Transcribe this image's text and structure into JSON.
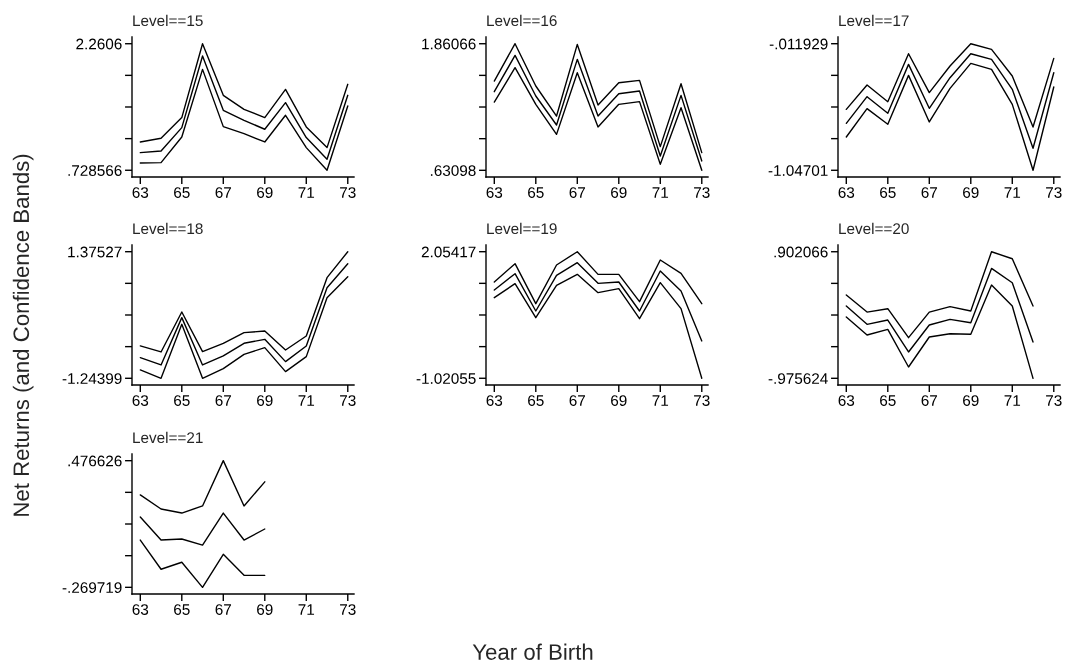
{
  "chart_data": [
    {
      "type": "line",
      "title": "Level==15",
      "xlabel": "Year of Birth",
      "ylabel": "Net Returns (and Confidence Bands)",
      "x": [
        63,
        64,
        65,
        66,
        67,
        68,
        69,
        70,
        71,
        72,
        73
      ],
      "xlim": [
        62.6,
        73.3
      ],
      "xticks": [
        63,
        65,
        67,
        69,
        71,
        73
      ],
      "ylim": [
        0.647,
        2.342
      ],
      "yticks": [
        {
          "value": 0.728566,
          "label": ".728566"
        },
        {
          "value": 1.1116,
          "label": null
        },
        {
          "value": 1.4946,
          "label": null
        },
        {
          "value": 1.8776,
          "label": null
        },
        {
          "value": 2.2606,
          "label": "2.2606"
        }
      ],
      "series": [
        {
          "color": "#000000",
          "values": [
            1.071,
            1.116,
            1.366,
            2.261,
            1.636,
            1.466,
            1.366,
            1.708,
            1.253,
            1.003,
            1.769
          ]
        },
        {
          "color": "#000000",
          "values": [
            0.942,
            0.962,
            1.245,
            2.112,
            1.454,
            1.333,
            1.225,
            1.547,
            1.124,
            0.862,
            1.636
          ]
        },
        {
          "color": "#000000",
          "values": [
            0.817,
            0.821,
            1.132,
            1.95,
            1.257,
            1.172,
            1.071,
            1.394,
            1.003,
            0.729,
            1.507
          ]
        }
      ]
    },
    {
      "type": "line",
      "title": "Level==16",
      "x": [
        63,
        64,
        65,
        66,
        67,
        68,
        69,
        70,
        71,
        72,
        73
      ],
      "xlim": [
        62.6,
        73.3
      ],
      "xticks": [
        63,
        65,
        67,
        69,
        71,
        73
      ],
      "ylim": [
        0.566,
        1.926
      ],
      "yticks": [
        {
          "value": 0.63098,
          "label": ".63098"
        },
        {
          "value": 0.9384,
          "label": null
        },
        {
          "value": 1.24582,
          "label": null
        },
        {
          "value": 1.55324,
          "label": null
        },
        {
          "value": 1.86066,
          "label": "1.86066"
        }
      ],
      "series": [
        {
          "color": "#000000",
          "values": [
            1.498,
            1.861,
            1.45,
            1.158,
            1.854,
            1.265,
            1.482,
            1.505,
            0.861,
            1.472,
            0.803
          ]
        },
        {
          "color": "#000000",
          "values": [
            1.395,
            1.747,
            1.353,
            1.071,
            1.709,
            1.158,
            1.375,
            1.401,
            0.77,
            1.359,
            0.722
          ]
        },
        {
          "color": "#000000",
          "values": [
            1.294,
            1.628,
            1.272,
            0.98,
            1.579,
            1.052,
            1.272,
            1.298,
            0.689,
            1.239,
            0.631
          ]
        }
      ]
    },
    {
      "type": "line",
      "title": "Level==17",
      "x": [
        63,
        64,
        65,
        66,
        67,
        68,
        69,
        70,
        71,
        72,
        73
      ],
      "xlim": [
        62.6,
        73.3
      ],
      "xticks": [
        63,
        65,
        67,
        69,
        71,
        73
      ],
      "ylim": [
        -1.102,
        0.043
      ],
      "yticks": [
        {
          "value": -1.04701,
          "label": "-1.04701"
        },
        {
          "value": -0.78824,
          "label": null
        },
        {
          "value": -0.52947,
          "label": null
        },
        {
          "value": -0.2707,
          "label": null
        },
        {
          "value": -0.011929,
          "label": "-.011929"
        }
      ],
      "series": [
        {
          "color": "#000000",
          "values": [
            -0.549,
            -0.35,
            -0.486,
            -0.094,
            -0.412,
            -0.194,
            -0.012,
            -0.058,
            -0.276,
            -0.693,
            -0.132
          ]
        },
        {
          "color": "#000000",
          "values": [
            -0.663,
            -0.445,
            -0.581,
            -0.181,
            -0.54,
            -0.29,
            -0.094,
            -0.14,
            -0.385,
            -0.867,
            -0.249
          ]
        },
        {
          "color": "#000000",
          "values": [
            -0.775,
            -0.543,
            -0.671,
            -0.271,
            -0.652,
            -0.377,
            -0.173,
            -0.222,
            -0.508,
            -1.047,
            -0.366
          ]
        }
      ]
    },
    {
      "type": "line",
      "title": "Level==18",
      "x": [
        63,
        64,
        65,
        66,
        67,
        68,
        69,
        70,
        71,
        72,
        73
      ],
      "xlim": [
        62.6,
        73.3
      ],
      "xticks": [
        63,
        65,
        67,
        69,
        71,
        73
      ],
      "ylim": [
        -1.383,
        1.514
      ],
      "yticks": [
        {
          "value": -1.24399,
          "label": "-1.24399"
        },
        {
          "value": -0.58918,
          "label": null
        },
        {
          "value": 0.06564,
          "label": null
        },
        {
          "value": 0.72046,
          "label": null
        },
        {
          "value": 1.37527,
          "label": "1.37527"
        }
      ],
      "series": [
        {
          "color": "#000000",
          "values": [
            -0.575,
            -0.699,
            0.128,
            -0.693,
            -0.52,
            -0.3,
            -0.265,
            -0.658,
            -0.369,
            0.838,
            1.375
          ]
        },
        {
          "color": "#000000",
          "values": [
            -0.817,
            -0.968,
            0.011,
            -0.968,
            -0.782,
            -0.52,
            -0.438,
            -0.899,
            -0.575,
            0.631,
            1.127
          ]
        },
        {
          "color": "#000000",
          "values": [
            -1.072,
            -1.244,
            -0.127,
            -1.244,
            -1.044,
            -0.748,
            -0.61,
            -1.106,
            -0.796,
            0.424,
            0.858
          ]
        }
      ]
    },
    {
      "type": "line",
      "title": "Level==19",
      "x": [
        63,
        64,
        65,
        66,
        67,
        68,
        69,
        70,
        71,
        72,
        73
      ],
      "xlim": [
        62.6,
        73.3
      ],
      "xticks": [
        63,
        65,
        67,
        69,
        71,
        73
      ],
      "ylim": [
        -1.184,
        2.217
      ],
      "yticks": [
        {
          "value": -1.02055,
          "label": "-1.02055"
        },
        {
          "value": -0.25187,
          "label": null
        },
        {
          "value": 0.51681,
          "label": null
        },
        {
          "value": 1.28549,
          "label": null
        },
        {
          "value": 2.05417,
          "label": "2.05417"
        }
      ],
      "series": [
        {
          "color": "#000000",
          "values": [
            1.318,
            1.763,
            0.792,
            1.731,
            2.054,
            1.504,
            1.504,
            0.841,
            1.852,
            1.528,
            0.792
          ]
        },
        {
          "color": "#000000",
          "values": [
            1.124,
            1.52,
            0.614,
            1.479,
            1.787,
            1.285,
            1.318,
            0.614,
            1.585,
            1.099,
            -0.114
          ]
        },
        {
          "color": "#000000",
          "values": [
            0.937,
            1.277,
            0.452,
            1.237,
            1.504,
            1.059,
            1.156,
            0.428,
            1.302,
            0.671,
            -1.021
          ]
        }
      ]
    },
    {
      "type": "line",
      "title": "Level==20",
      "x": [
        63,
        64,
        65,
        66,
        67,
        68,
        69,
        70,
        71,
        72
      ],
      "xlim": [
        62.6,
        73.3
      ],
      "xticks": [
        63,
        65,
        67,
        69,
        71,
        73
      ],
      "ylim": [
        -1.075,
        1.002
      ],
      "yticks": [
        {
          "value": -0.975624,
          "label": "-.975624"
        },
        {
          "value": -0.506202,
          "label": null
        },
        {
          "value": -0.036779,
          "label": null
        },
        {
          "value": 0.432643,
          "label": null
        },
        {
          "value": 0.902066,
          "label": ".902066"
        }
      ],
      "series": [
        {
          "color": "#000000",
          "values": [
            0.26,
            0.007,
            0.057,
            -0.373,
            0.007,
            0.087,
            0.023,
            0.902,
            0.798,
            0.097
          ]
        },
        {
          "color": "#000000",
          "values": [
            0.097,
            -0.175,
            -0.111,
            -0.585,
            -0.185,
            -0.101,
            -0.151,
            0.655,
            0.442,
            -0.437
          ]
        },
        {
          "color": "#000000",
          "values": [
            -0.067,
            -0.333,
            -0.25,
            -0.808,
            -0.363,
            -0.314,
            -0.323,
            0.408,
            0.097,
            -0.976
          ]
        }
      ]
    },
    {
      "type": "line",
      "title": "Level==21",
      "x": [
        63,
        64,
        65,
        66,
        67,
        68,
        69
      ],
      "xlim": [
        62.6,
        73.3
      ],
      "xticks": [
        63,
        65,
        67,
        69,
        71,
        73
      ],
      "ylim": [
        -0.309,
        0.516
      ],
      "yticks": [
        {
          "value": -0.269719,
          "label": "-.269719"
        },
        {
          "value": -0.083133,
          "label": null
        },
        {
          "value": 0.103454,
          "label": null
        },
        {
          "value": 0.29004,
          "label": null
        },
        {
          "value": 0.476626,
          "label": ".476626"
        }
      ],
      "series": [
        {
          "color": "#000000",
          "values": [
            0.275,
            0.192,
            0.168,
            0.21,
            0.477,
            0.21,
            0.352
          ]
        },
        {
          "color": "#000000",
          "values": [
            0.145,
            0.009,
            0.015,
            -0.021,
            0.168,
            0.009,
            0.074
          ]
        },
        {
          "color": "#000000",
          "values": [
            0.009,
            -0.163,
            -0.122,
            -0.27,
            -0.075,
            -0.199,
            -0.199
          ]
        }
      ]
    }
  ]
}
